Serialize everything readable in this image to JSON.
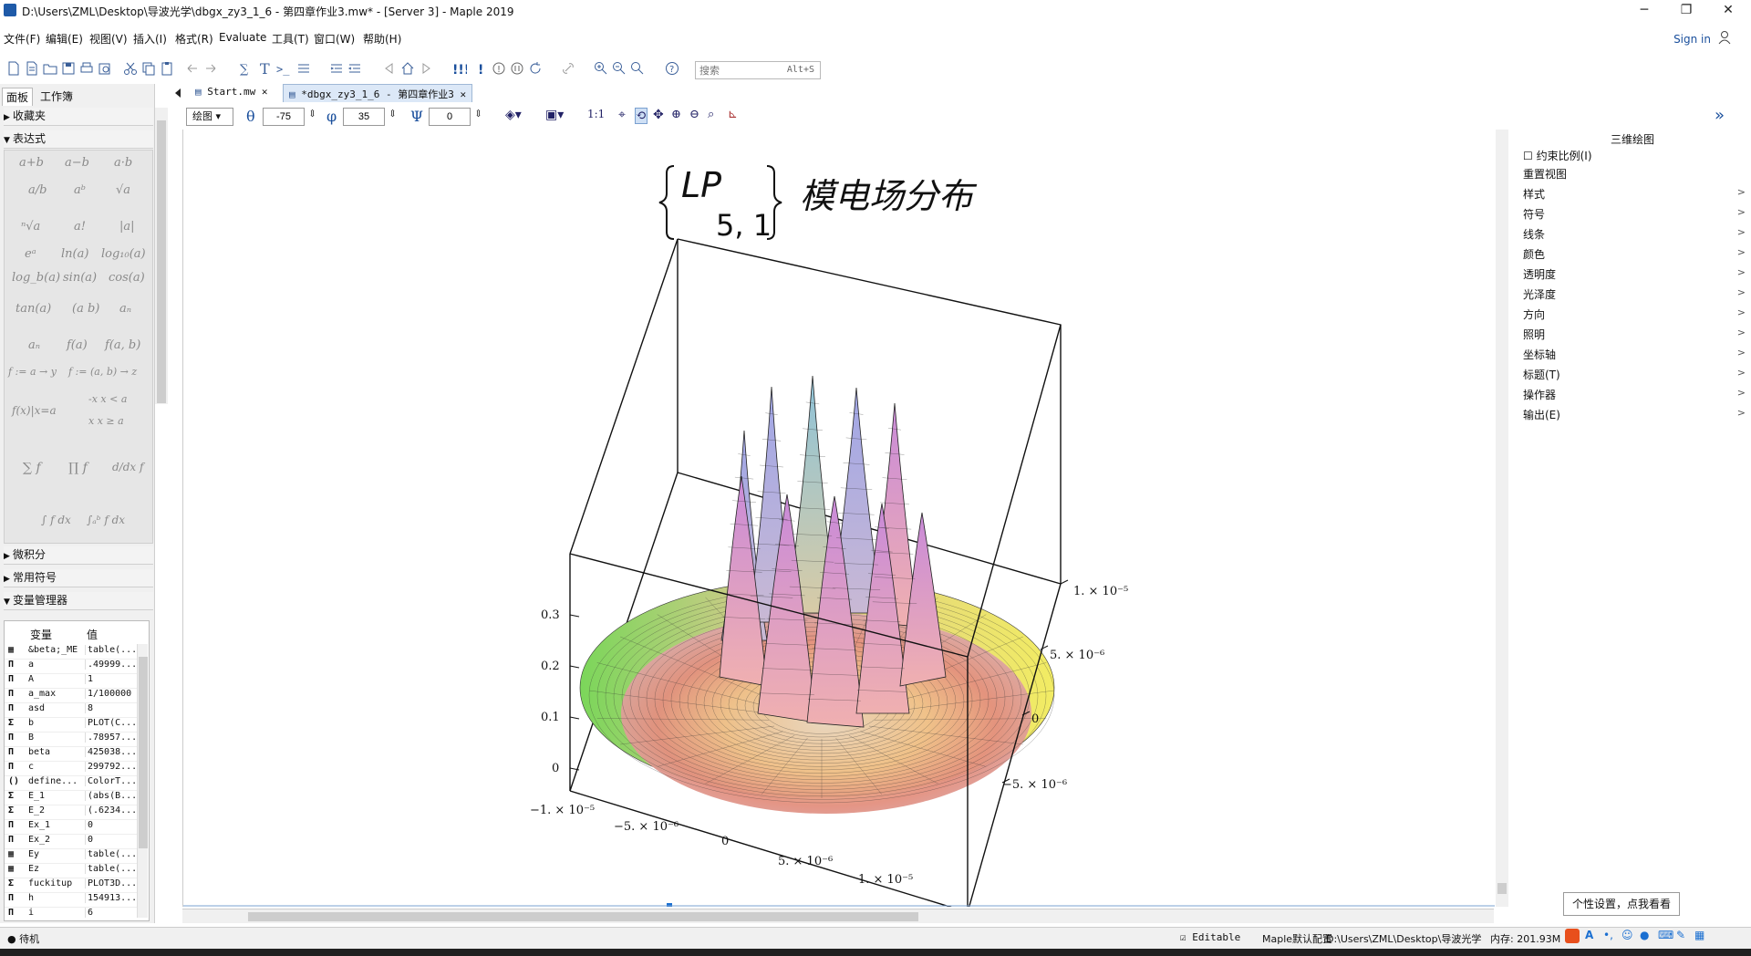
{
  "window": {
    "title": "D:\\Users\\ZML\\Desktop\\导波光学\\dbgx_zy3_1_6 - 第四章作业3.mw* - [Server 3] - Maple 2019",
    "minimize": "─",
    "maximize": "❐",
    "close": "✕"
  },
  "menu": [
    "文件(F)",
    "编辑(E)",
    "视图(V)",
    "插入(I)",
    "格式(R)",
    "Evaluate",
    "工具(T)",
    "窗口(W)",
    "帮助(H)"
  ],
  "signin": "Sign in",
  "search": {
    "placeholder": "搜索",
    "shortcut": "Alt+S"
  },
  "left_panel": {
    "tabs": [
      "面板",
      "工作簿"
    ],
    "sections": [
      "收藏夹",
      "表达式",
      "微积分",
      "常用符号",
      "变量管理器"
    ],
    "expressions": [
      "a+b",
      "a−b",
      "a·b",
      "a/b",
      "aᵇ",
      "√a",
      "ⁿ√a",
      "a!",
      "|a|",
      "eᵃ",
      "ln(a)",
      "log₁₀(a)",
      "log_b(a)",
      "sin(a)",
      "cos(a)",
      "tan(a)",
      "(a b)",
      "aₙ",
      "aₙ",
      "f(a)",
      "f(a, b)",
      "f := a → y",
      "f := (a, b) → z",
      "f(x)|x=a",
      "-x  x < a",
      "x  x ≥ a",
      "∑ f",
      "∏ f",
      "d/dx f",
      "∫ f dx",
      "∫ₐᵇ f dx"
    ],
    "var_headers": [
      "变量",
      "值"
    ],
    "variables": [
      {
        "t": "▦",
        "n": "&beta;_ME",
        "v": "table(..."
      },
      {
        "t": "Π",
        "n": "a",
        "v": ".49999..."
      },
      {
        "t": "Π",
        "n": "A",
        "v": "1"
      },
      {
        "t": "Π",
        "n": "a_max",
        "v": "1/100000"
      },
      {
        "t": "Π",
        "n": "asd",
        "v": "8"
      },
      {
        "t": "Σ",
        "n": "b",
        "v": "PLOT(C..."
      },
      {
        "t": "Π",
        "n": "B",
        "v": ".78957..."
      },
      {
        "t": "Π",
        "n": "beta",
        "v": "425038..."
      },
      {
        "t": "Π",
        "n": "c",
        "v": "299792..."
      },
      {
        "t": "()",
        "n": "define...",
        "v": "ColorT..."
      },
      {
        "t": "Σ",
        "n": "E_1",
        "v": "(abs(B..."
      },
      {
        "t": "Σ",
        "n": "E_2",
        "v": "(.6234..."
      },
      {
        "t": "Π",
        "n": "Ex_1",
        "v": "0"
      },
      {
        "t": "Π",
        "n": "Ex_2",
        "v": "0"
      },
      {
        "t": "▦",
        "n": "Ey",
        "v": "table(..."
      },
      {
        "t": "▦",
        "n": "Ez",
        "v": "table(..."
      },
      {
        "t": "Σ",
        "n": "fuckitup",
        "v": "PLOT3D..."
      },
      {
        "t": "Π",
        "n": "h",
        "v": "154913..."
      },
      {
        "t": "Π",
        "n": "i",
        "v": "6"
      }
    ]
  },
  "doc_tabs": [
    "Start.mw",
    "*dbgx_zy3_1_6 - 第四章作业3"
  ],
  "plot_toolbar": {
    "mode": "绘图",
    "theta": "-75",
    "phi": "35",
    "psi": "0",
    "ratio": "1:1"
  },
  "plot": {
    "title_main": "LP",
    "title_sub": "5, 1",
    "title_text": "模电场分布",
    "z_ticks": [
      "0.3",
      "0.2",
      "0.1",
      "0"
    ],
    "x_ticks": [
      "−1. × 10⁻⁵",
      "−5. × 10⁻⁶",
      "0",
      "5. × 10⁻⁶",
      "1. × 10⁻⁵"
    ],
    "y_ticks": [
      "1. × 10⁻⁵",
      "5. × 10⁻⁶",
      "0",
      "−5. × 10⁻⁶"
    ]
  },
  "right_panel": {
    "title": "三维绘图",
    "checkbox": "约束比例(I)",
    "items": [
      "重置视图",
      "样式",
      "符号",
      "线条",
      "颜色",
      "透明度",
      "光泽度",
      "方向",
      "照明",
      "坐标轴",
      "标题(T)",
      "操作器",
      "输出(E)"
    ]
  },
  "status": {
    "state": "待机",
    "editable": "Editable",
    "config": "Maple默认配置",
    "path": "D:\\Users\\ZML\\Desktop\\导波光学",
    "memory": "内存: 201.93M"
  },
  "tooltip": "个性设置，点我看看"
}
